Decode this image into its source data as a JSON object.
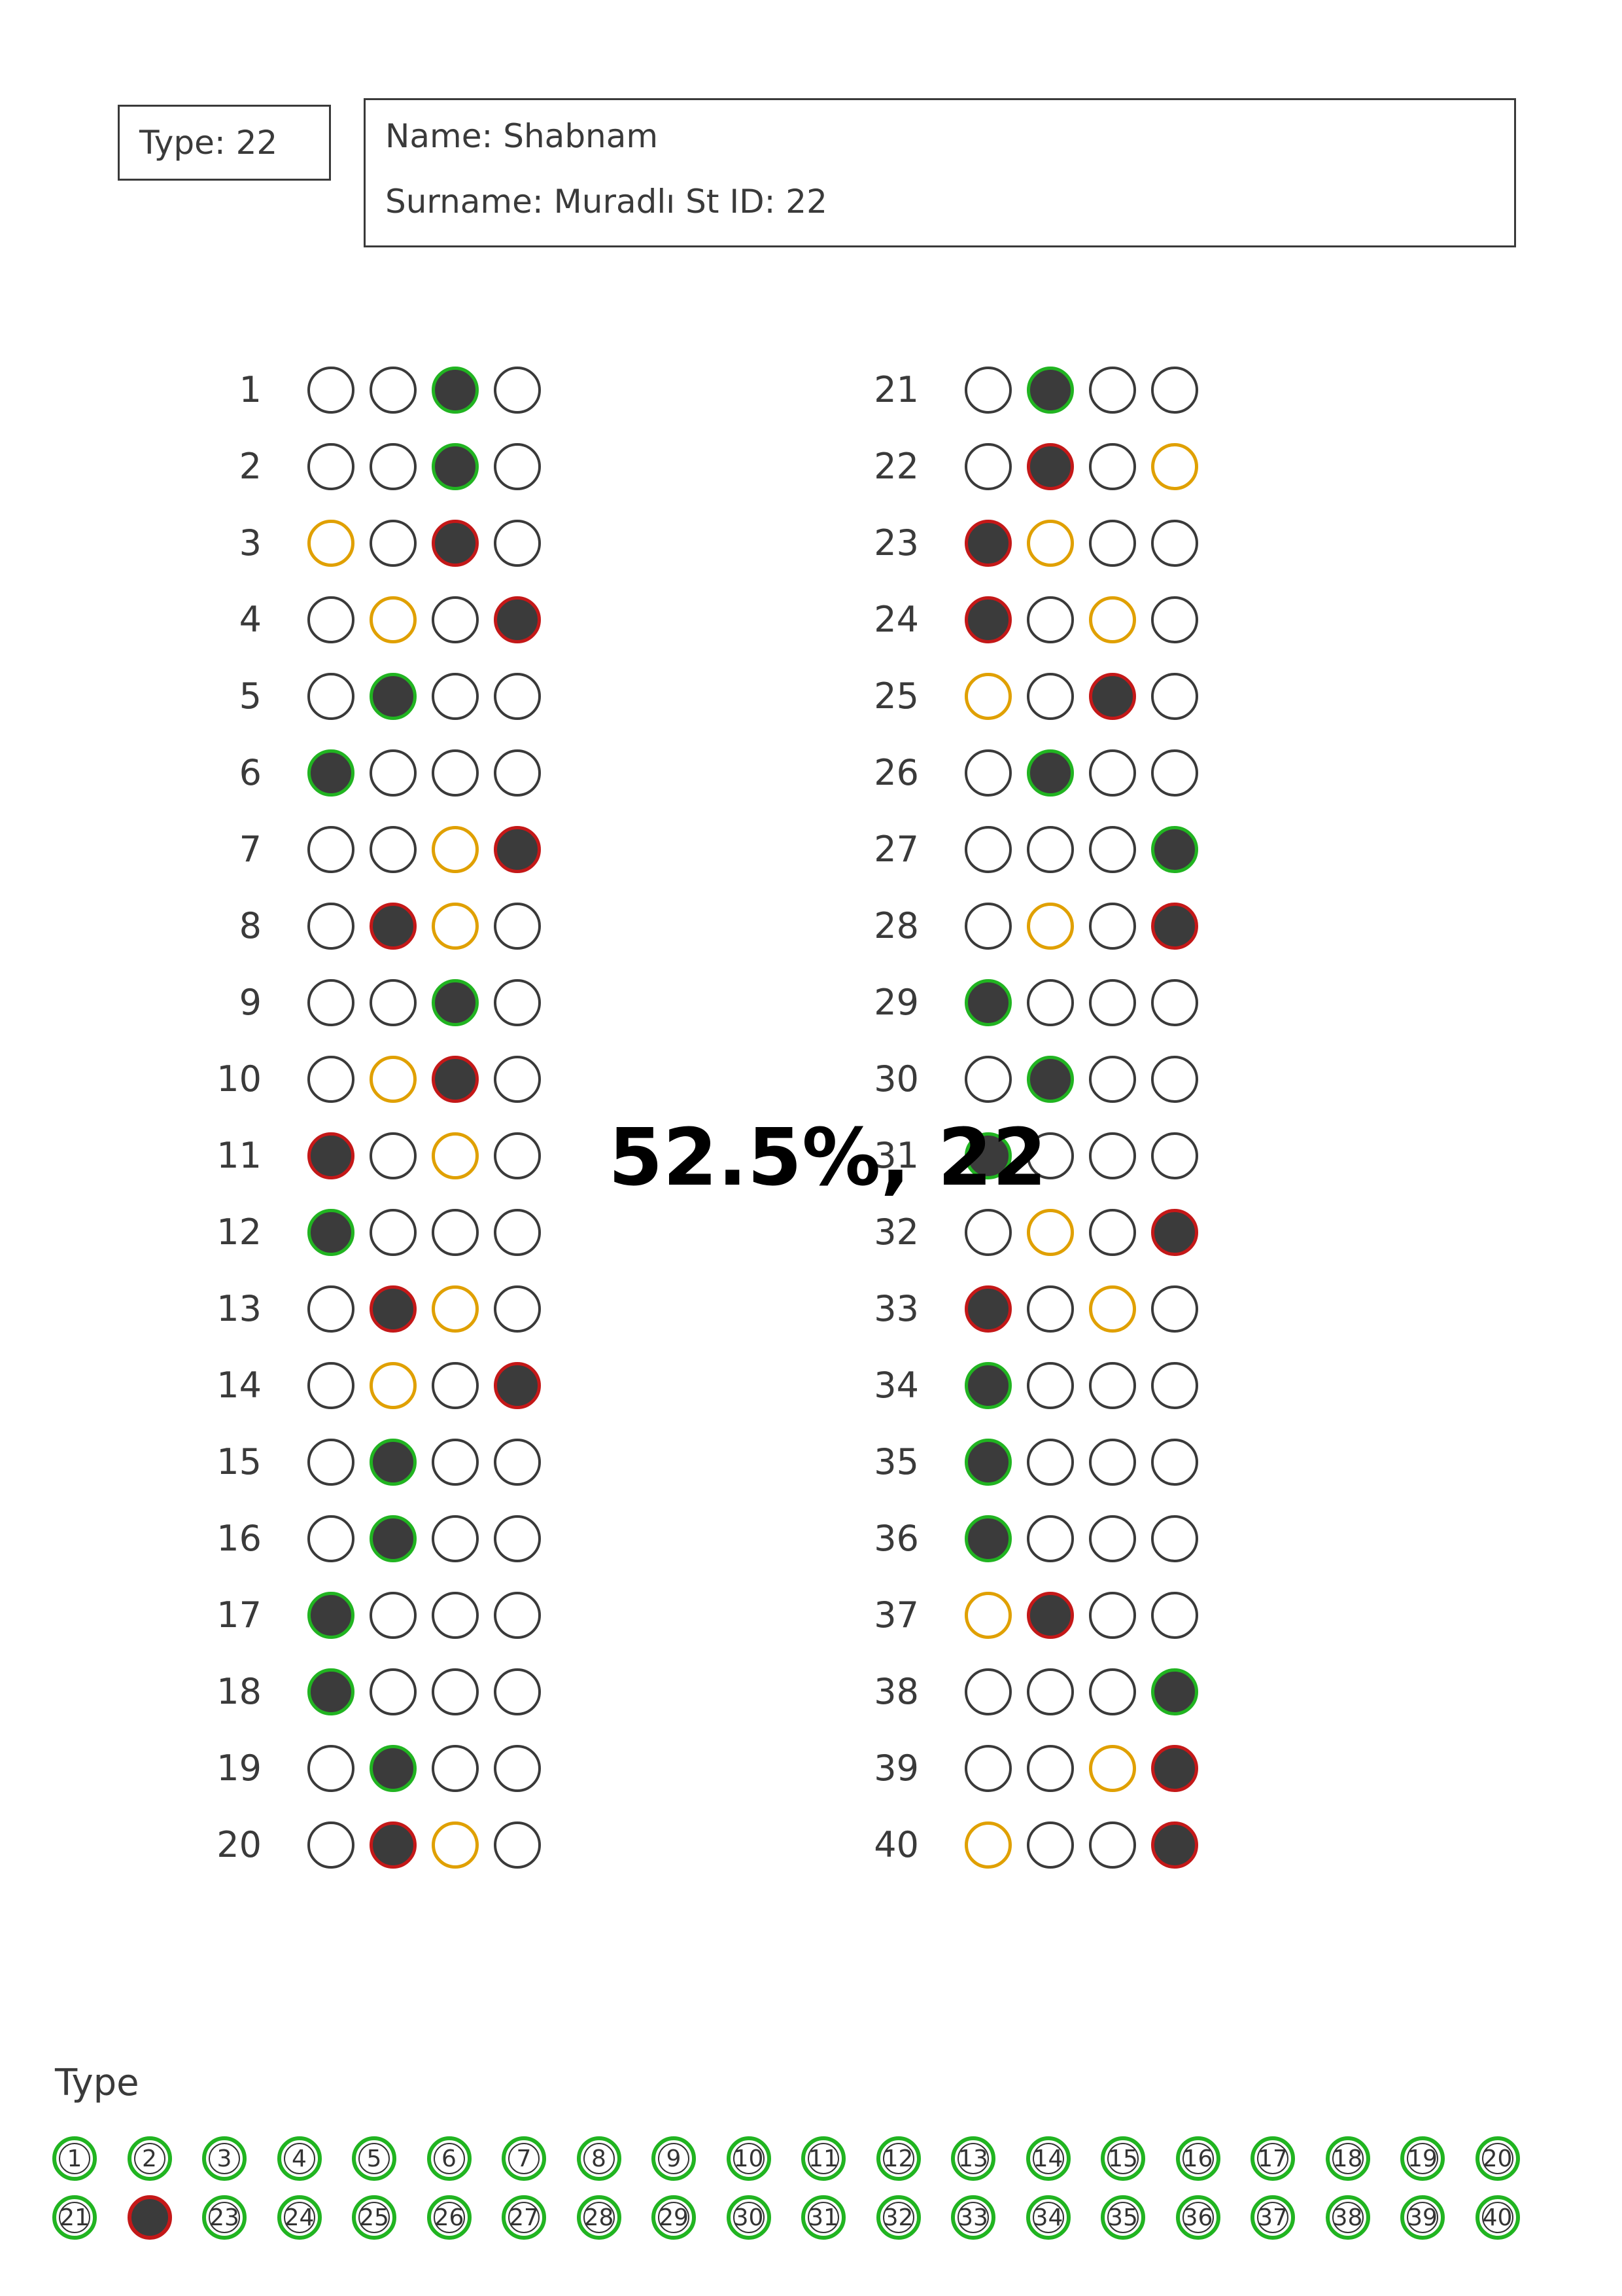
{
  "header": {
    "type_label": "Type:   22",
    "name_line": "Name: Shabnam",
    "surname_line": "Surname: Muradlı  St ID: 22"
  },
  "score_text": "52.5%, 22",
  "legend_colors": {
    "correct": "#21b421",
    "wrong": "#c41818",
    "expected_answer": "#e0a000"
  },
  "questions": [
    {
      "n": "1",
      "marks": [
        "",
        "",
        "correct",
        ""
      ]
    },
    {
      "n": "2",
      "marks": [
        "",
        "",
        "correct",
        ""
      ]
    },
    {
      "n": "3",
      "marks": [
        "answer",
        "",
        "wrong",
        ""
      ]
    },
    {
      "n": "4",
      "marks": [
        "",
        "answer",
        "",
        "wrong"
      ]
    },
    {
      "n": "5",
      "marks": [
        "",
        "correct",
        "",
        ""
      ]
    },
    {
      "n": "6",
      "marks": [
        "correct",
        "",
        "",
        ""
      ]
    },
    {
      "n": "7",
      "marks": [
        "",
        "",
        "answer",
        "wrong"
      ]
    },
    {
      "n": "8",
      "marks": [
        "",
        "wrong",
        "answer",
        ""
      ]
    },
    {
      "n": "9",
      "marks": [
        "",
        "",
        "correct",
        ""
      ]
    },
    {
      "n": "10",
      "marks": [
        "",
        "answer",
        "wrong",
        ""
      ]
    },
    {
      "n": "11",
      "marks": [
        "wrong",
        "",
        "answer",
        ""
      ]
    },
    {
      "n": "12",
      "marks": [
        "correct",
        "",
        "",
        ""
      ]
    },
    {
      "n": "13",
      "marks": [
        "",
        "wrong",
        "answer",
        ""
      ]
    },
    {
      "n": "14",
      "marks": [
        "",
        "answer",
        "",
        "wrong"
      ]
    },
    {
      "n": "15",
      "marks": [
        "",
        "correct",
        "",
        ""
      ]
    },
    {
      "n": "16",
      "marks": [
        "",
        "correct",
        "",
        ""
      ]
    },
    {
      "n": "17",
      "marks": [
        "correct",
        "",
        "",
        ""
      ]
    },
    {
      "n": "18",
      "marks": [
        "correct",
        "",
        "",
        ""
      ]
    },
    {
      "n": "19",
      "marks": [
        "",
        "correct",
        "",
        ""
      ]
    },
    {
      "n": "20",
      "marks": [
        "",
        "wrong",
        "answer",
        ""
      ]
    },
    {
      "n": "21",
      "marks": [
        "",
        "correct",
        "",
        ""
      ]
    },
    {
      "n": "22",
      "marks": [
        "",
        "wrong",
        "",
        "answer"
      ]
    },
    {
      "n": "23",
      "marks": [
        "wrong",
        "answer",
        "",
        ""
      ]
    },
    {
      "n": "24",
      "marks": [
        "wrong",
        "",
        "answer",
        ""
      ]
    },
    {
      "n": "25",
      "marks": [
        "answer",
        "",
        "wrong",
        ""
      ]
    },
    {
      "n": "26",
      "marks": [
        "",
        "correct",
        "",
        ""
      ]
    },
    {
      "n": "27",
      "marks": [
        "",
        "",
        "",
        "correct"
      ]
    },
    {
      "n": "28",
      "marks": [
        "",
        "answer",
        "",
        "wrong"
      ]
    },
    {
      "n": "29",
      "marks": [
        "correct",
        "",
        "",
        ""
      ]
    },
    {
      "n": "30",
      "marks": [
        "",
        "correct",
        "",
        ""
      ]
    },
    {
      "n": "31",
      "marks": [
        "correct",
        "",
        "",
        ""
      ]
    },
    {
      "n": "32",
      "marks": [
        "",
        "answer",
        "",
        "wrong"
      ]
    },
    {
      "n": "33",
      "marks": [
        "wrong",
        "",
        "answer",
        ""
      ]
    },
    {
      "n": "34",
      "marks": [
        "correct",
        "",
        "",
        ""
      ]
    },
    {
      "n": "35",
      "marks": [
        "correct",
        "",
        "",
        ""
      ]
    },
    {
      "n": "36",
      "marks": [
        "correct",
        "",
        "",
        ""
      ]
    },
    {
      "n": "37",
      "marks": [
        "answer",
        "wrong",
        "",
        ""
      ]
    },
    {
      "n": "38",
      "marks": [
        "",
        "",
        "",
        "correct"
      ]
    },
    {
      "n": "39",
      "marks": [
        "",
        "",
        "answer",
        "wrong"
      ]
    },
    {
      "n": "40",
      "marks": [
        "answer",
        "",
        "",
        "wrong"
      ]
    }
  ],
  "type_section": {
    "label": "Type",
    "bubbles": [
      "1",
      "2",
      "3",
      "4",
      "5",
      "6",
      "7",
      "8",
      "9",
      "10",
      "11",
      "12",
      "13",
      "14",
      "15",
      "16",
      "17",
      "18",
      "19",
      "20",
      "21",
      "",
      "23",
      "24",
      "25",
      "26",
      "27",
      "28",
      "29",
      "30",
      "31",
      "32",
      "33",
      "34",
      "35",
      "36",
      "37",
      "38",
      "39",
      "40"
    ],
    "filled_value": "22"
  }
}
